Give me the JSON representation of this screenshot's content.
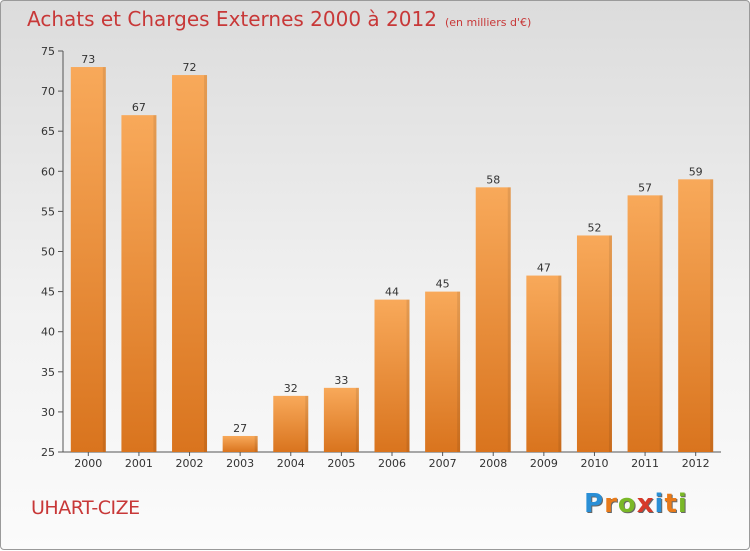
{
  "header": {
    "title": "Achats et Charges Externes 2000 à 2012",
    "unit": "(en milliers d'€)"
  },
  "footer": {
    "commune": "UHART-CIZE",
    "logo_letters": [
      "P",
      "r",
      "o",
      "x",
      "i",
      "t",
      "i"
    ],
    "logo_colors": [
      "#2a8fd6",
      "#e87a1a",
      "#7ab828",
      "#d63a2a",
      "#2a8fd6",
      "#e87a1a",
      "#7ab828"
    ]
  },
  "colors": {
    "title": "#c83838",
    "bar_light": "#f8a95a",
    "bar_dark": "#d9741e"
  },
  "chart_data": {
    "type": "bar",
    "title": "Achats et Charges Externes 2000 à 2012",
    "subtitle": "(en milliers d'€)",
    "categories": [
      "2000",
      "2001",
      "2002",
      "2003",
      "2004",
      "2005",
      "2006",
      "2007",
      "2008",
      "2009",
      "2010",
      "2011",
      "2012"
    ],
    "values": [
      73,
      67,
      72,
      27,
      32,
      33,
      44,
      45,
      58,
      47,
      52,
      57,
      59
    ],
    "ylim": [
      25,
      75
    ],
    "yticks": [
      25,
      30,
      35,
      40,
      45,
      50,
      55,
      60,
      65,
      70,
      75
    ],
    "grid": false,
    "legend": "none"
  }
}
